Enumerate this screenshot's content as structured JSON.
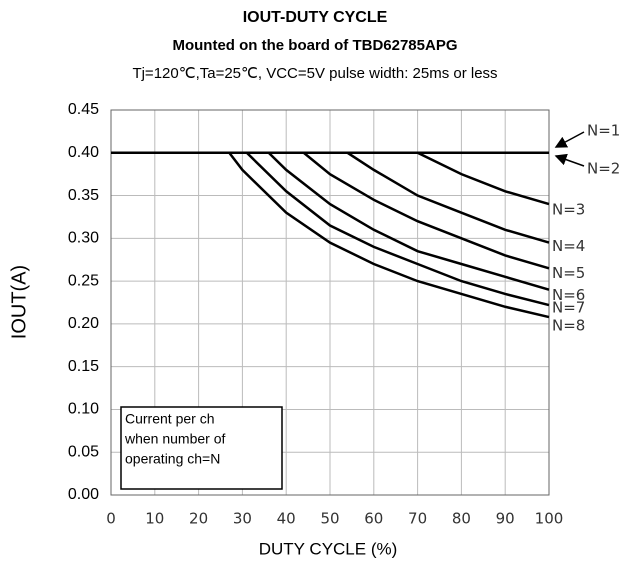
{
  "chart_data": {
    "type": "line",
    "title": "IOUT-DUTY CYCLE",
    "subtitle": "Mounted on the board of TBD62785APG",
    "note": "Tj=120℃,Ta=25℃, VCC=5V pulse width: 25ms or less",
    "xlabel": "DUTY CYCLE (%)",
    "ylabel": "IOUT(A)",
    "annotation": [
      "Current per ch",
      "when number of",
      "operating ch=N"
    ],
    "xlim": [
      0,
      100
    ],
    "xticks": [
      0,
      10,
      20,
      30,
      40,
      50,
      60,
      70,
      80,
      90,
      100
    ],
    "ylim": [
      0,
      0.45
    ],
    "yticks": [
      {
        "value": 0,
        "label": "0.00"
      },
      {
        "value": 0.05,
        "label": "0.05"
      },
      {
        "value": 0.1,
        "label": "0.10"
      },
      {
        "value": 0.15,
        "label": "0.15"
      },
      {
        "value": 0.2,
        "label": "0.20"
      },
      {
        "value": 0.25,
        "label": "0.25"
      },
      {
        "value": 0.3,
        "label": "0.30"
      },
      {
        "value": 0.35,
        "label": "0.35"
      },
      {
        "value": 0.4,
        "label": "0.40"
      },
      {
        "value": 0.45,
        "label": "0.45"
      }
    ],
    "grid": true,
    "series": [
      {
        "name": "N=1",
        "color": "#000000",
        "x": [
          0,
          100
        ],
        "values": [
          0.4,
          0.4
        ]
      },
      {
        "name": "N=2",
        "color": "#000000",
        "x": [
          0,
          100
        ],
        "values": [
          0.4,
          0.4
        ]
      },
      {
        "name": "N=3",
        "color": "#000000",
        "x": [
          0,
          70,
          80,
          90,
          100
        ],
        "values": [
          0.4,
          0.4,
          0.375,
          0.355,
          0.34
        ]
      },
      {
        "name": "N=4",
        "color": "#000000",
        "x": [
          0,
          54,
          60,
          70,
          80,
          90,
          100
        ],
        "values": [
          0.4,
          0.4,
          0.38,
          0.35,
          0.33,
          0.31,
          0.295
        ]
      },
      {
        "name": "N=5",
        "color": "#000000",
        "x": [
          0,
          44,
          50,
          60,
          70,
          80,
          90,
          100
        ],
        "values": [
          0.4,
          0.4,
          0.375,
          0.345,
          0.32,
          0.3,
          0.28,
          0.265
        ]
      },
      {
        "name": "N=6",
        "color": "#000000",
        "x": [
          0,
          36,
          40,
          50,
          60,
          70,
          80,
          90,
          100
        ],
        "values": [
          0.4,
          0.4,
          0.38,
          0.34,
          0.31,
          0.285,
          0.27,
          0.255,
          0.24
        ]
      },
      {
        "name": "N=7",
        "color": "#000000",
        "x": [
          0,
          31,
          40,
          50,
          60,
          70,
          80,
          90,
          100
        ],
        "values": [
          0.4,
          0.4,
          0.355,
          0.315,
          0.29,
          0.27,
          0.25,
          0.235,
          0.222
        ]
      },
      {
        "name": "N=8",
        "color": "#000000",
        "x": [
          0,
          27,
          30,
          40,
          50,
          60,
          70,
          80,
          90,
          100
        ],
        "values": [
          0.4,
          0.4,
          0.38,
          0.33,
          0.295,
          0.27,
          0.25,
          0.235,
          0.22,
          0.208
        ]
      }
    ]
  }
}
